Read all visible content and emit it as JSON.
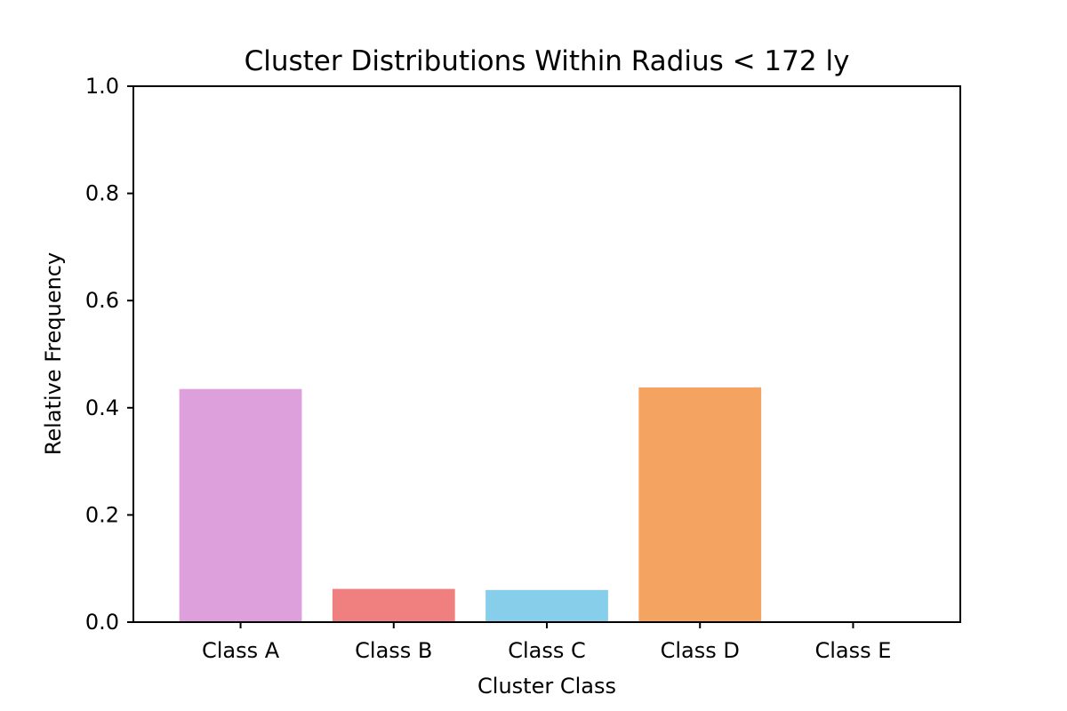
{
  "chart_data": {
    "type": "bar",
    "title": "Cluster Distributions Within Radius < 172 ly",
    "xlabel": "Cluster Class",
    "ylabel": "Relative Frequency",
    "categories": [
      "Class A",
      "Class B",
      "Class C",
      "Class D",
      "Class E"
    ],
    "values": [
      0.435,
      0.062,
      0.06,
      0.438,
      0.0
    ],
    "colors": [
      "#dda0dd",
      "#f08080",
      "#87ceeb",
      "#f4a460",
      "#ffffff"
    ],
    "ylim": [
      0,
      1.0
    ],
    "yticks": [
      0.0,
      0.2,
      0.4,
      0.6,
      0.8,
      1.0
    ],
    "ytick_labels": [
      "0.0",
      "0.2",
      "0.4",
      "0.6",
      "0.8",
      "1.0"
    ],
    "grid": false,
    "legend": "none"
  }
}
